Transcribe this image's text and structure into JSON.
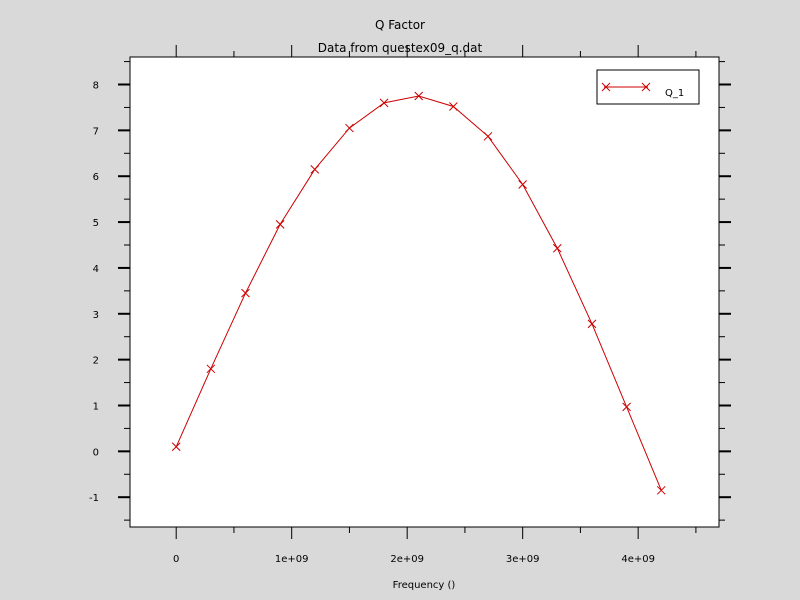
{
  "chart_data": {
    "type": "line",
    "title": "Q Factor",
    "subtitle": "Data from questex09_q.dat",
    "xlabel": "Frequency ()",
    "ylabel": "",
    "xlim": [
      -400000000,
      4700000000
    ],
    "ylim": [
      -1.65,
      8.6
    ],
    "x_ticks": [
      {
        "value": 0,
        "label": "0"
      },
      {
        "value": 1000000000,
        "label": "1e+09"
      },
      {
        "value": 2000000000,
        "label": "2e+09"
      },
      {
        "value": 3000000000,
        "label": "3e+09"
      },
      {
        "value": 4000000000,
        "label": "4e+09"
      }
    ],
    "y_ticks": [
      {
        "value": -1,
        "label": "-1"
      },
      {
        "value": 0,
        "label": "0"
      },
      {
        "value": 1,
        "label": "1"
      },
      {
        "value": 2,
        "label": "2"
      },
      {
        "value": 3,
        "label": "3"
      },
      {
        "value": 4,
        "label": "4"
      },
      {
        "value": 5,
        "label": "5"
      },
      {
        "value": 6,
        "label": "6"
      },
      {
        "value": 7,
        "label": "7"
      },
      {
        "value": 8,
        "label": "8"
      }
    ],
    "grid": false,
    "legend_position": "top-right",
    "series": [
      {
        "name": "Q_1",
        "color": "#cc0000",
        "marker": "x",
        "x": [
          0,
          300000000,
          600000000,
          900000000,
          1200000000,
          1500000000,
          1800000000,
          2100000000,
          2400000000,
          2700000000,
          3000000000,
          3300000000,
          3600000000,
          3900000000,
          4200000000
        ],
        "y": [
          0.1,
          1.8,
          3.45,
          4.95,
          6.15,
          7.05,
          7.6,
          7.75,
          7.52,
          6.87,
          5.82,
          4.43,
          2.78,
          0.97,
          -0.85
        ]
      }
    ]
  }
}
